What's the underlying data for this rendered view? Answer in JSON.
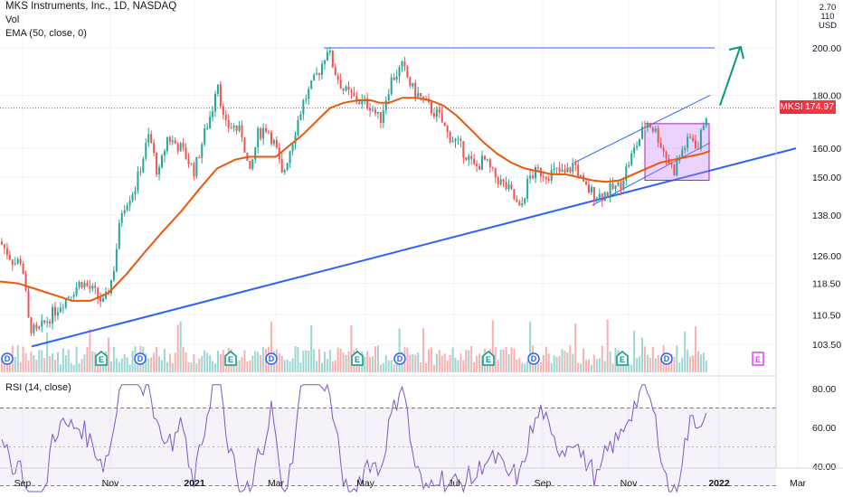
{
  "header": {
    "title": "MKS Instruments, Inc., 1D, NASDAQ",
    "vol_label": "Vol",
    "ema_label": "EMA (50, close, 0)",
    "rsi_label": "RSI (14, close)"
  },
  "price_tag": {
    "symbol": "MKSI",
    "value": "174.97"
  },
  "currency": {
    "top": "2.70 110",
    "unit": "USD"
  },
  "colors": {
    "up": "#26a69a",
    "down": "#ef5350",
    "ema": "#e8590c",
    "trend": "#2962ff",
    "arrow": "#089981",
    "box": "#c77dff",
    "rsi": "#7e57c2"
  },
  "chart_data": {
    "type": "line",
    "title": "MKS Instruments, Inc., 1D, NASDAQ",
    "ylim": [
      99,
      222
    ],
    "yticks": [
      "200.00",
      "180.00",
      "160.00",
      "150.00",
      "138.00",
      "126.00",
      "118.50",
      "110.50",
      "103.50"
    ],
    "yvalues": [
      200,
      180,
      160,
      150,
      138,
      126,
      118.5,
      110.5,
      103.5
    ],
    "xticks": [
      "Sep",
      "Nov",
      "2021",
      "Mar",
      "May",
      "Jul",
      "Sep",
      "Nov",
      "2022",
      "Mar"
    ],
    "price_path": [
      [
        0,
        130
      ],
      [
        8,
        127
      ],
      [
        16,
        124
      ],
      [
        24,
        125
      ],
      [
        32,
        108
      ],
      [
        40,
        106
      ],
      [
        55,
        110
      ],
      [
        70,
        114
      ],
      [
        90,
        119
      ],
      [
        105,
        116
      ],
      [
        115,
        113
      ],
      [
        125,
        121
      ],
      [
        135,
        140
      ],
      [
        150,
        147
      ],
      [
        165,
        165
      ],
      [
        175,
        150
      ],
      [
        185,
        164
      ],
      [
        200,
        160
      ],
      [
        215,
        152
      ],
      [
        225,
        164
      ],
      [
        235,
        175
      ],
      [
        240,
        188
      ],
      [
        248,
        168
      ],
      [
        258,
        168
      ],
      [
        268,
        165
      ],
      [
        276,
        150
      ],
      [
        285,
        165
      ],
      [
        295,
        168
      ],
      [
        305,
        160
      ],
      [
        312,
        150
      ],
      [
        320,
        159
      ],
      [
        335,
        177
      ],
      [
        345,
        184
      ],
      [
        355,
        192
      ],
      [
        362,
        200
      ],
      [
        370,
        190
      ],
      [
        380,
        182
      ],
      [
        395,
        178
      ],
      [
        410,
        176
      ],
      [
        420,
        170
      ],
      [
        432,
        186
      ],
      [
        445,
        192
      ],
      [
        455,
        183
      ],
      [
        465,
        179
      ],
      [
        475,
        175
      ],
      [
        485,
        172
      ],
      [
        495,
        165
      ],
      [
        505,
        162
      ],
      [
        515,
        158
      ],
      [
        525,
        153
      ],
      [
        535,
        156
      ],
      [
        545,
        151
      ],
      [
        555,
        148
      ],
      [
        565,
        145
      ],
      [
        575,
        139
      ],
      [
        585,
        150
      ],
      [
        595,
        152
      ],
      [
        605,
        151
      ],
      [
        615,
        152
      ],
      [
        625,
        151
      ],
      [
        635,
        155
      ],
      [
        645,
        147
      ],
      [
        655,
        145
      ],
      [
        665,
        144
      ],
      [
        675,
        146
      ],
      [
        685,
        147
      ],
      [
        695,
        155
      ],
      [
        705,
        162
      ],
      [
        715,
        170
      ],
      [
        725,
        166
      ],
      [
        735,
        158
      ],
      [
        745,
        152
      ],
      [
        755,
        160
      ],
      [
        765,
        164
      ],
      [
        772,
        160
      ],
      [
        778,
        170
      ],
      [
        783,
        175
      ]
    ],
    "ema_path": [
      [
        0,
        119
      ],
      [
        20,
        118.5
      ],
      [
        40,
        117
      ],
      [
        60,
        115.5
      ],
      [
        80,
        114
      ],
      [
        100,
        114
      ],
      [
        120,
        116
      ],
      [
        140,
        121
      ],
      [
        160,
        127
      ],
      [
        180,
        133
      ],
      [
        200,
        139
      ],
      [
        220,
        146
      ],
      [
        240,
        153
      ],
      [
        260,
        156
      ],
      [
        275,
        157
      ],
      [
        290,
        157
      ],
      [
        305,
        157
      ],
      [
        320,
        161
      ],
      [
        335,
        165
      ],
      [
        350,
        170
      ],
      [
        365,
        175
      ],
      [
        380,
        177
      ],
      [
        395,
        178
      ],
      [
        410,
        178
      ],
      [
        420,
        177
      ],
      [
        430,
        177
      ],
      [
        445,
        179
      ],
      [
        460,
        179
      ],
      [
        475,
        178
      ],
      [
        490,
        176
      ],
      [
        505,
        172
      ],
      [
        520,
        167
      ],
      [
        535,
        162
      ],
      [
        550,
        158
      ],
      [
        565,
        155
      ],
      [
        580,
        153
      ],
      [
        595,
        152
      ],
      [
        610,
        151
      ],
      [
        625,
        151
      ],
      [
        640,
        150
      ],
      [
        655,
        149
      ],
      [
        670,
        148.5
      ],
      [
        685,
        149
      ],
      [
        700,
        151
      ],
      [
        715,
        153
      ],
      [
        730,
        155
      ],
      [
        745,
        156
      ],
      [
        760,
        157
      ],
      [
        775,
        158
      ],
      [
        785,
        159
      ]
    ],
    "rsi": {
      "ylim": [
        22,
        90
      ],
      "yticks": [
        "80.00",
        "60.00",
        "40.00"
      ],
      "yvalues": [
        80,
        60,
        40
      ],
      "upper": 70,
      "lower": 30
    }
  }
}
